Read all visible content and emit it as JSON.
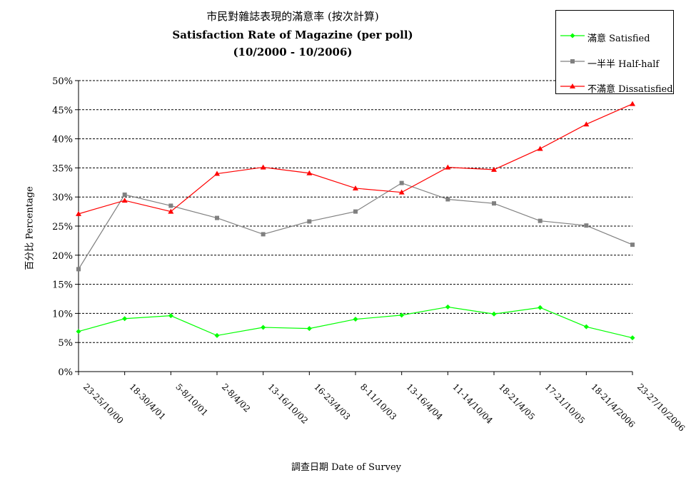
{
  "title": {
    "line1": "市民對雜誌表現的滿意率 (按次計算)",
    "line2": "Satisfaction Rate of Magazine (per poll)",
    "line3": "(10/2000 - 10/2006)"
  },
  "legend": {
    "position": "top-right",
    "items": [
      {
        "label": "滿意 Satisfied",
        "color": "#00ff00",
        "marker": "diamond"
      },
      {
        "label": "一半半 Half-half",
        "color": "#808080",
        "marker": "square"
      },
      {
        "label": "不滿意 Dissatisfied",
        "color": "#ff0000",
        "marker": "triangle"
      }
    ]
  },
  "chart_data": {
    "type": "line",
    "title": "Satisfaction Rate of Magazine (per poll)",
    "xlabel": "調查日期 Date of Survey",
    "ylabel": "百分比 Percentage",
    "ylim": [
      0,
      50
    ],
    "yticks": [
      "0%",
      "5%",
      "10%",
      "15%",
      "20%",
      "25%",
      "30%",
      "35%",
      "40%",
      "45%",
      "50%"
    ],
    "grid": "horizontal dashed",
    "categories": [
      "23-25/10/00",
      "18-30/4/01",
      "5-8/10/01",
      "2-8/4/02",
      "13-16/10/02",
      "16-23/4/03",
      "8-11/10/03",
      "13-16/4/04",
      "11-14/10/04",
      "18-21/4/05",
      "17-21/10/05",
      "18-21/4/2006",
      "23-27/10/2006"
    ],
    "series": [
      {
        "name": "滿意 Satisfied",
        "color": "#00ff00",
        "marker": "diamond",
        "values": [
          6.9,
          9.1,
          9.6,
          6.2,
          7.6,
          7.4,
          9.0,
          9.7,
          11.1,
          9.9,
          11.0,
          7.7,
          5.8
        ]
      },
      {
        "name": "一半半 Half-half",
        "color": "#808080",
        "marker": "square",
        "values": [
          17.6,
          30.4,
          28.5,
          26.4,
          23.6,
          25.8,
          27.5,
          32.4,
          29.6,
          28.9,
          25.9,
          25.1,
          21.8
        ]
      },
      {
        "name": "不滿意 Dissatisfied",
        "color": "#ff0000",
        "marker": "triangle",
        "values": [
          27.1,
          29.4,
          27.5,
          34.0,
          35.1,
          34.1,
          31.5,
          30.8,
          35.1,
          34.7,
          38.3,
          42.5,
          46.0
        ]
      }
    ]
  }
}
